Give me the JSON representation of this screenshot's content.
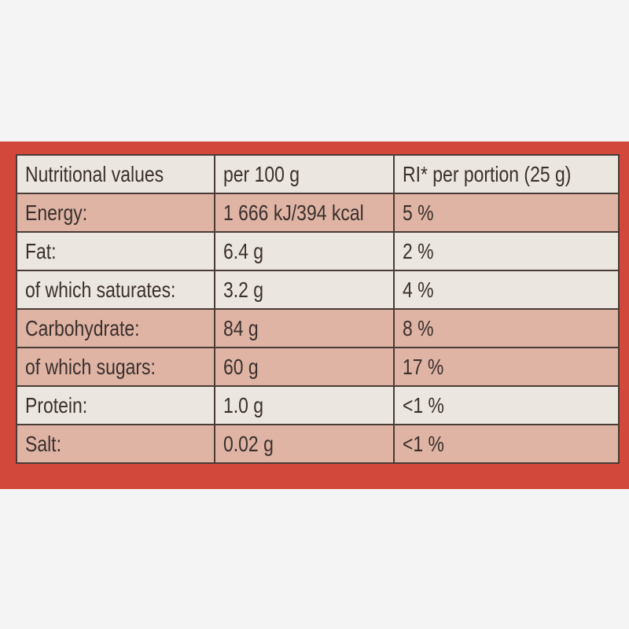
{
  "table": {
    "header": [
      "Nutritional values",
      "per 100 g",
      "RI* per portion (25 g)"
    ],
    "rows": [
      [
        "Energy:",
        "1 666 kJ/394 kcal",
        "5 %"
      ],
      [
        "Fat:",
        "6.4 g",
        "2 %"
      ],
      [
        "of which saturates:",
        "3.2 g",
        "4 %"
      ],
      [
        "Carbohydrate:",
        "84 g",
        "8 %"
      ],
      [
        "of which sugars:",
        "60 g",
        "17 %"
      ],
      [
        "Protein:",
        "1.0 g",
        "<1 %"
      ],
      [
        "Salt:",
        "0.02 g",
        "<1 %"
      ]
    ]
  }
}
